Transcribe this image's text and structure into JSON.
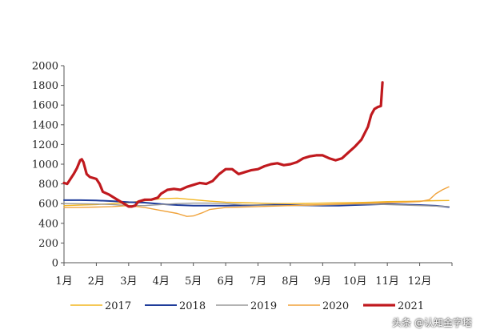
{
  "chart_data": {
    "type": "line",
    "title": "",
    "xlabel": "",
    "ylabel": "",
    "ylim": [
      0,
      2000
    ],
    "yticks": [
      0,
      200,
      400,
      600,
      800,
      1000,
      1200,
      1400,
      1600,
      1800,
      2000
    ],
    "xlim": [
      1,
      13
    ],
    "xtick_labels": [
      "1月",
      "2月",
      "3月",
      "4月",
      "5月",
      "6月",
      "7月",
      "8月",
      "9月",
      "10月",
      "11月",
      "12月"
    ],
    "grid": false,
    "legend_position": "bottom",
    "series": [
      {
        "name": "2017",
        "color": "#F2B51F",
        "points": [
          [
            1.0,
            580
          ],
          [
            1.5,
            585
          ],
          [
            2.0,
            590
          ],
          [
            2.5,
            600
          ],
          [
            3.0,
            610
          ],
          [
            3.5,
            630
          ],
          [
            4.0,
            650
          ],
          [
            4.5,
            655
          ],
          [
            5.0,
            640
          ],
          [
            5.5,
            625
          ],
          [
            6.0,
            615
          ],
          [
            6.5,
            610
          ],
          [
            7.0,
            605
          ],
          [
            7.5,
            600
          ],
          [
            8.0,
            600
          ],
          [
            8.5,
            602
          ],
          [
            9.0,
            605
          ],
          [
            9.5,
            608
          ],
          [
            10.0,
            610
          ],
          [
            10.5,
            615
          ],
          [
            11.0,
            620
          ],
          [
            11.5,
            622
          ],
          [
            12.0,
            625
          ],
          [
            12.5,
            630
          ],
          [
            12.9,
            632
          ]
        ]
      },
      {
        "name": "2018",
        "color": "#1F3C9A",
        "points": [
          [
            1.0,
            635
          ],
          [
            1.5,
            635
          ],
          [
            2.0,
            632
          ],
          [
            2.5,
            625
          ],
          [
            3.0,
            615
          ],
          [
            3.5,
            610
          ],
          [
            4.0,
            595
          ],
          [
            4.5,
            585
          ],
          [
            5.0,
            580
          ],
          [
            5.5,
            580
          ],
          [
            6.0,
            580
          ],
          [
            6.5,
            582
          ],
          [
            7.0,
            585
          ],
          [
            7.5,
            588
          ],
          [
            8.0,
            585
          ],
          [
            8.5,
            582
          ],
          [
            9.0,
            580
          ],
          [
            9.5,
            580
          ],
          [
            10.0,
            585
          ],
          [
            10.5,
            590
          ],
          [
            11.0,
            595
          ],
          [
            11.5,
            590
          ],
          [
            12.0,
            585
          ],
          [
            12.5,
            578
          ],
          [
            12.9,
            565
          ]
        ]
      },
      {
        "name": "2019",
        "color": "#9A9A9A",
        "points": [
          [
            1.0,
            600
          ],
          [
            1.5,
            598
          ],
          [
            2.0,
            596
          ],
          [
            2.5,
            590
          ],
          [
            3.0,
            580
          ],
          [
            3.5,
            580
          ],
          [
            4.0,
            590
          ],
          [
            4.5,
            600
          ],
          [
            5.0,
            605
          ],
          [
            5.5,
            605
          ],
          [
            6.0,
            600
          ],
          [
            6.5,
            590
          ],
          [
            7.0,
            585
          ],
          [
            7.5,
            580
          ],
          [
            8.0,
            580
          ],
          [
            8.5,
            582
          ],
          [
            9.0,
            585
          ],
          [
            9.5,
            590
          ],
          [
            10.0,
            595
          ],
          [
            10.5,
            595
          ],
          [
            11.0,
            590
          ],
          [
            11.5,
            585
          ],
          [
            12.0,
            580
          ],
          [
            12.5,
            575
          ],
          [
            12.9,
            570
          ]
        ]
      },
      {
        "name": "2020",
        "color": "#F0A23A",
        "points": [
          [
            1.0,
            560
          ],
          [
            1.5,
            562
          ],
          [
            2.0,
            565
          ],
          [
            2.5,
            570
          ],
          [
            3.0,
            580
          ],
          [
            3.5,
            560
          ],
          [
            4.0,
            530
          ],
          [
            4.5,
            500
          ],
          [
            4.8,
            470
          ],
          [
            5.0,
            475
          ],
          [
            5.3,
            510
          ],
          [
            5.5,
            540
          ],
          [
            6.0,
            560
          ],
          [
            6.5,
            565
          ],
          [
            7.0,
            570
          ],
          [
            7.5,
            575
          ],
          [
            8.0,
            580
          ],
          [
            8.5,
            585
          ],
          [
            9.0,
            590
          ],
          [
            9.5,
            595
          ],
          [
            10.0,
            600
          ],
          [
            10.5,
            605
          ],
          [
            11.0,
            610
          ],
          [
            11.5,
            615
          ],
          [
            12.0,
            620
          ],
          [
            12.3,
            640
          ],
          [
            12.5,
            700
          ],
          [
            12.7,
            740
          ],
          [
            12.9,
            770
          ]
        ]
      },
      {
        "name": "2021",
        "color": "#C0191E",
        "points": [
          [
            1.0,
            810
          ],
          [
            1.1,
            800
          ],
          [
            1.2,
            850
          ],
          [
            1.3,
            900
          ],
          [
            1.4,
            960
          ],
          [
            1.5,
            1040
          ],
          [
            1.55,
            1050
          ],
          [
            1.6,
            1020
          ],
          [
            1.7,
            900
          ],
          [
            1.8,
            870
          ],
          [
            2.0,
            850
          ],
          [
            2.1,
            800
          ],
          [
            2.2,
            720
          ],
          [
            2.4,
            690
          ],
          [
            2.6,
            650
          ],
          [
            2.75,
            620
          ],
          [
            2.9,
            590
          ],
          [
            3.0,
            570
          ],
          [
            3.1,
            570
          ],
          [
            3.2,
            580
          ],
          [
            3.3,
            620
          ],
          [
            3.5,
            640
          ],
          [
            3.7,
            640
          ],
          [
            3.9,
            660
          ],
          [
            4.0,
            700
          ],
          [
            4.2,
            740
          ],
          [
            4.4,
            750
          ],
          [
            4.6,
            740
          ],
          [
            4.8,
            770
          ],
          [
            5.0,
            790
          ],
          [
            5.2,
            810
          ],
          [
            5.4,
            800
          ],
          [
            5.6,
            830
          ],
          [
            5.8,
            900
          ],
          [
            6.0,
            950
          ],
          [
            6.2,
            950
          ],
          [
            6.4,
            900
          ],
          [
            6.6,
            920
          ],
          [
            6.8,
            940
          ],
          [
            7.0,
            950
          ],
          [
            7.2,
            980
          ],
          [
            7.4,
            1000
          ],
          [
            7.6,
            1010
          ],
          [
            7.8,
            990
          ],
          [
            8.0,
            1000
          ],
          [
            8.2,
            1020
          ],
          [
            8.4,
            1060
          ],
          [
            8.6,
            1080
          ],
          [
            8.8,
            1090
          ],
          [
            9.0,
            1090
          ],
          [
            9.2,
            1060
          ],
          [
            9.4,
            1040
          ],
          [
            9.6,
            1060
          ],
          [
            9.8,
            1120
          ],
          [
            10.0,
            1180
          ],
          [
            10.2,
            1250
          ],
          [
            10.4,
            1380
          ],
          [
            10.5,
            1500
          ],
          [
            10.6,
            1560
          ],
          [
            10.7,
            1580
          ],
          [
            10.8,
            1590
          ],
          [
            10.85,
            1830
          ]
        ]
      }
    ]
  },
  "watermark": "头条 @认知金字塔"
}
